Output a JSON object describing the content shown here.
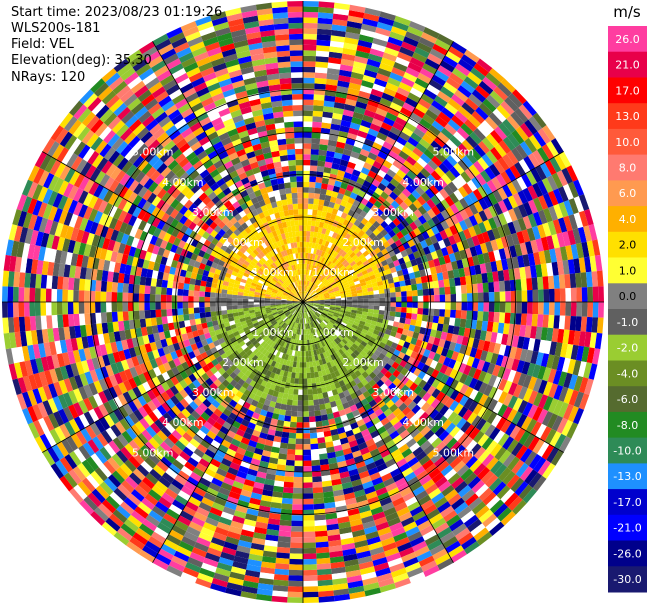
{
  "header": {
    "start_time": "Start time: 2023/08/23 01:19:26",
    "station": "WLS200s-181",
    "field": "Field: VEL",
    "elevation": "Elevation(deg): 35.30",
    "nrays": "NRays: 120"
  },
  "chart_data": {
    "type": "heatmap",
    "projection": "polar-ppi",
    "nrays": 120,
    "max_range_km": 7,
    "range_ring_labels": [
      "1.00km",
      "2.00km",
      "3.00km",
      "4.00km",
      "5.00km"
    ],
    "colorbar": {
      "unit": "m/s",
      "ticks": [
        "26.0",
        "21.0",
        "17.0",
        "13.0",
        "10.0",
        "8.0",
        "6.0",
        "4.0",
        "2.0",
        "1.0",
        "0.0",
        "-1.0",
        "-2.0",
        "-4.0",
        "-6.0",
        "-8.0",
        "-10.0",
        "-13.0",
        "-17.0",
        "-21.0",
        "-26.0",
        "-30.0"
      ],
      "colors": [
        "#ff3da0",
        "#e8004a",
        "#ff0000",
        "#ff3a1a",
        "#ff5a3a",
        "#ff7a70",
        "#ff9a50",
        "#ffb000",
        "#ffe000",
        "#ffff33",
        "#808080",
        "#606060",
        "#9acd32",
        "#6b8e23",
        "#556b2f",
        "#228b22",
        "#2e8b57",
        "#1e90ff",
        "#0000cd",
        "#0000ff",
        "#00008b",
        "#191970"
      ]
    },
    "velocity_pattern": {
      "inner_range_km": [
        0,
        2.6
      ],
      "inbound_sector": "south",
      "inbound_values_ms": [
        -2.0,
        -4.0,
        -6.0
      ],
      "outbound_sector": "north",
      "outbound_values_ms": [
        2.0,
        4.0,
        6.0
      ],
      "transition_values_ms": [
        0.0,
        -1.0
      ]
    }
  }
}
